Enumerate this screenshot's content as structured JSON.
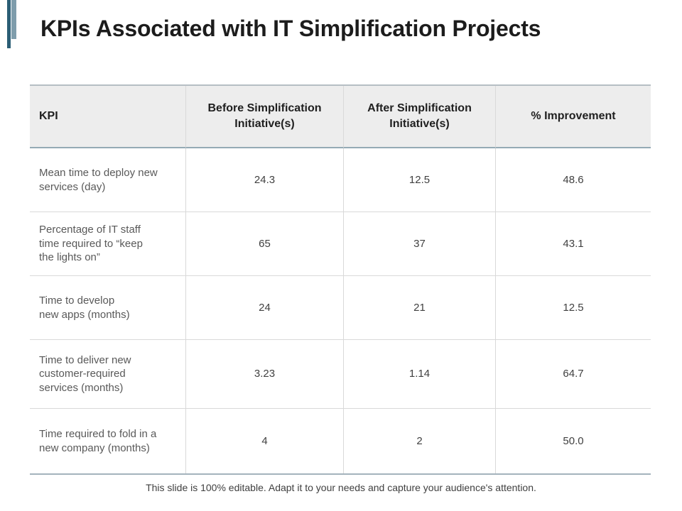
{
  "title": "KPIs Associated with IT Simplification Projects",
  "footer": "This slide is 100% editable. Adapt it to your needs and capture your audience's attention.",
  "colors": {
    "accent_dark": "#2b5e75",
    "accent_light": "#7f9dac",
    "header_bg": "#ededed",
    "header_underline": "#94aab5",
    "table_outer_border": "#b6bec4",
    "row_divider": "#d9d9d9",
    "title_text": "#1c1c1c",
    "body_text": "#595959"
  },
  "table": {
    "headers": [
      "KPI",
      "Before Simplification\nInitiative(s)",
      "After Simplification\nInitiative(s)",
      "% Improvement"
    ],
    "rows": [
      {
        "kpi": "Mean time to deploy new\nservices (day)",
        "before": "24.3",
        "after": "12.5",
        "improvement": "48.6"
      },
      {
        "kpi": "Percentage of IT staff\ntime required to “keep\nthe lights on”",
        "before": "65",
        "after": "37",
        "improvement": "43.1"
      },
      {
        "kpi": "Time to develop\nnew apps (months)",
        "before": "24",
        "after": "21",
        "improvement": "12.5"
      },
      {
        "kpi": "Time to deliver new\ncustomer-required\nservices (months)",
        "before": "3.23",
        "after": "1.14",
        "improvement": "64.7"
      },
      {
        "kpi": "Time required to fold in a\nnew company (months)",
        "before": "4",
        "after": "2",
        "improvement": "50.0"
      }
    ]
  },
  "chart_data": {
    "type": "table",
    "title": "KPIs Associated with IT Simplification Projects",
    "columns": [
      "KPI",
      "Before Simplification Initiative(s)",
      "After Simplification Initiative(s)",
      "% Improvement"
    ],
    "rows": [
      [
        "Mean time to deploy new services (day)",
        24.3,
        12.5,
        48.6
      ],
      [
        "Percentage of IT staff time required to “keep the lights on”",
        65,
        37,
        43.1
      ],
      [
        "Time to develop new apps (months)",
        24,
        21,
        12.5
      ],
      [
        "Time to deliver new customer-required services (months)",
        3.23,
        1.14,
        64.7
      ],
      [
        "Time required to fold in a new company (months)",
        4,
        2,
        50.0
      ]
    ]
  }
}
